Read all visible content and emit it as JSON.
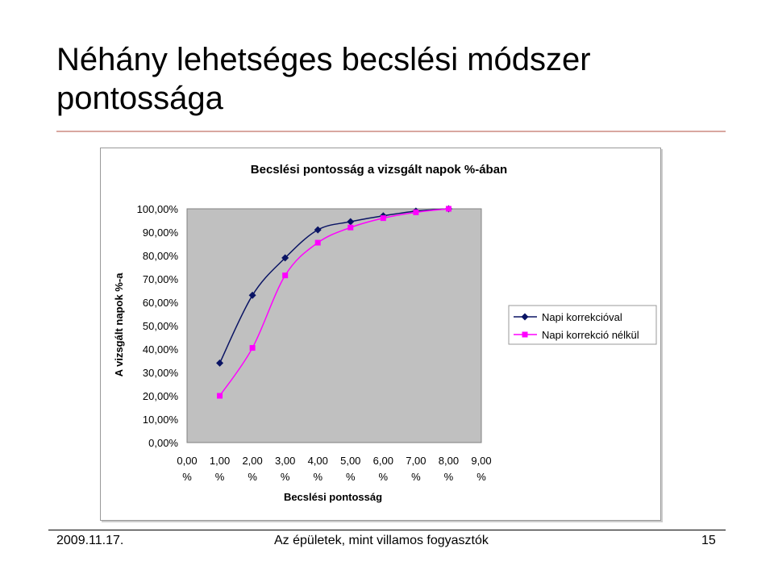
{
  "slide": {
    "title": "Néhány lehetséges becslési módszer pontossága",
    "footer_date": "2009.11.17.",
    "footer_center": "Az épületek, mint villamos fogyasztók",
    "page_number": "15"
  },
  "chart_data": {
    "type": "line",
    "title": "Becslési pontosság a vizsgált napok %-ában",
    "xlabel": "Becslési pontosság",
    "ylabel": "A vizsgált napok %-a",
    "xlim": [
      0,
      9
    ],
    "ylim": [
      0,
      100
    ],
    "x_ticks": [
      {
        "value": 0,
        "line1": "0,00",
        "line2": "%"
      },
      {
        "value": 1,
        "line1": "1,00",
        "line2": "%"
      },
      {
        "value": 2,
        "line1": "2,00",
        "line2": "%"
      },
      {
        "value": 3,
        "line1": "3,00",
        "line2": "%"
      },
      {
        "value": 4,
        "line1": "4,00",
        "line2": "%"
      },
      {
        "value": 5,
        "line1": "5,00",
        "line2": "%"
      },
      {
        "value": 6,
        "line1": "6,00",
        "line2": "%"
      },
      {
        "value": 7,
        "line1": "7,00",
        "line2": "%"
      },
      {
        "value": 8,
        "line1": "8,00",
        "line2": "%"
      },
      {
        "value": 9,
        "line1": "9,00",
        "line2": "%"
      }
    ],
    "y_ticks": [
      {
        "value": 0,
        "label": "0,00%"
      },
      {
        "value": 10,
        "label": "10,00%"
      },
      {
        "value": 20,
        "label": "20,00%"
      },
      {
        "value": 30,
        "label": "30,00%"
      },
      {
        "value": 40,
        "label": "40,00%"
      },
      {
        "value": 50,
        "label": "50,00%"
      },
      {
        "value": 60,
        "label": "60,00%"
      },
      {
        "value": 70,
        "label": "70,00%"
      },
      {
        "value": 80,
        "label": "80,00%"
      },
      {
        "value": 90,
        "label": "90,00%"
      },
      {
        "value": 100,
        "label": "100,00%"
      }
    ],
    "legend_position": "right",
    "grid": false,
    "series": [
      {
        "name": "Napi korrekcióval",
        "color": "#0a1464",
        "marker": "diamond",
        "x": [
          1,
          2,
          3,
          4,
          5,
          6,
          7,
          8
        ],
        "y": [
          34,
          63,
          79,
          91,
          94.5,
          97,
          99,
          100
        ]
      },
      {
        "name": "Napi korrekció nélkül",
        "color": "#ff00ff",
        "marker": "square",
        "x": [
          1,
          2,
          3,
          4,
          5,
          6,
          7,
          8
        ],
        "y": [
          20,
          40.5,
          71.5,
          85.5,
          92,
          96,
          98.5,
          100
        ]
      }
    ]
  }
}
